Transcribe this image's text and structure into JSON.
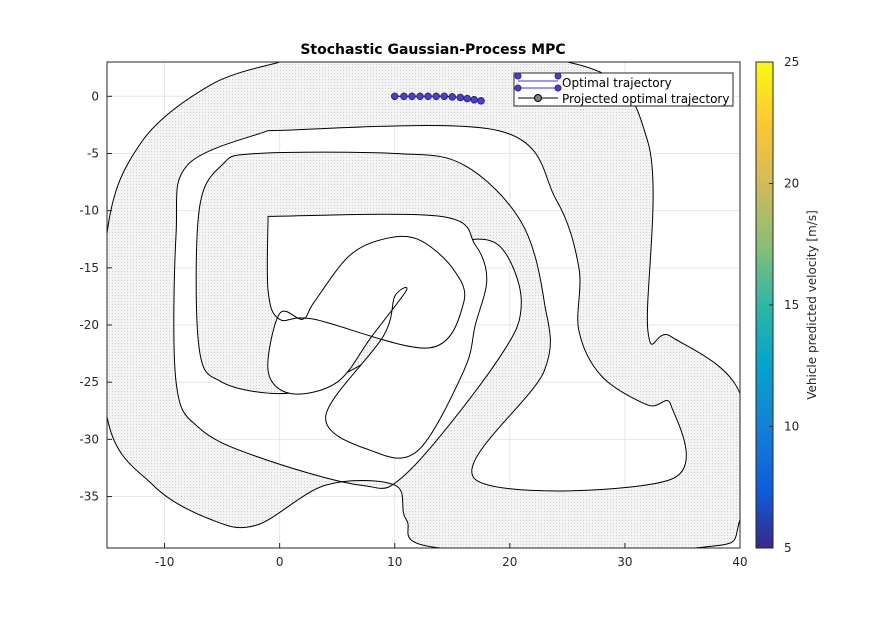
{
  "chart_data": {
    "type": "line",
    "title": "Stochastic Gaussian-Process MPC",
    "xlim": [
      -15,
      40
    ],
    "ylim": [
      -39.5,
      3
    ],
    "x_ticks": [
      -10,
      0,
      10,
      20,
      30,
      40
    ],
    "y_ticks": [
      0,
      -5,
      -10,
      -15,
      -20,
      -25,
      -30,
      -35
    ],
    "grid": true,
    "legend_placement": "top-right",
    "legend": [
      "Optimal trajectory",
      "Projected optimal trajectory"
    ],
    "colorbar": {
      "label": "Vehicle predicted velocity [m/s]",
      "range": [
        5,
        25
      ],
      "ticks": [
        5,
        10,
        15,
        20,
        25
      ],
      "colormap": "parula"
    },
    "track": {
      "outer_boundary": [
        [
          0,
          3
        ],
        [
          25,
          3
        ],
        [
          32,
          -4
        ],
        [
          32,
          -20.5
        ],
        [
          34,
          -21
        ],
        [
          40,
          -26
        ],
        [
          40,
          -37
        ],
        [
          36,
          -39.5
        ],
        [
          14,
          -39.5
        ],
        [
          11,
          -37
        ],
        [
          10,
          -34
        ],
        [
          4,
          -34
        ],
        [
          -2,
          -37.5
        ],
        [
          -6,
          -37
        ],
        [
          -11,
          -34
        ],
        [
          -15,
          -28
        ],
        [
          -15,
          -12
        ],
        [
          -12,
          -4
        ],
        [
          -6,
          1
        ],
        [
          0,
          3
        ]
      ],
      "outer_inner_edge": [
        [
          -1,
          -3
        ],
        [
          19,
          -3
        ],
        [
          24,
          -9
        ],
        [
          26,
          -15
        ],
        [
          26,
          -20.5
        ],
        [
          28,
          -24.5
        ],
        [
          32,
          -27
        ],
        [
          34,
          -27
        ],
        [
          34,
          -33.5
        ],
        [
          17,
          -33.5
        ],
        [
          23,
          -24
        ],
        [
          23,
          -18
        ],
        [
          21,
          -11
        ],
        [
          16,
          -6
        ],
        [
          10,
          -5
        ],
        [
          -2,
          -5
        ],
        [
          -5,
          -6
        ],
        [
          -7,
          -10
        ],
        [
          -7,
          -22
        ],
        [
          -5,
          -25
        ],
        [
          0,
          -26
        ],
        [
          4,
          -25
        ],
        [
          9,
          -22
        ],
        [
          13,
          -16
        ],
        [
          15,
          -13
        ],
        [
          19,
          -13
        ],
        [
          21,
          -18
        ],
        [
          19,
          -23
        ],
        [
          11,
          -33
        ],
        [
          7,
          -34
        ],
        [
          -2,
          -31.5
        ],
        [
          -7,
          -29
        ],
        [
          -9,
          -25
        ],
        [
          -9,
          -12
        ],
        [
          -8,
          -6
        ],
        [
          -1,
          -3
        ]
      ],
      "inner_island": [
        [
          -1,
          -10.5
        ],
        [
          14,
          -10.5
        ],
        [
          17,
          -13
        ],
        [
          18,
          -16
        ],
        [
          17,
          -20
        ],
        [
          16,
          -24
        ],
        [
          12,
          -31
        ],
        [
          8,
          -31
        ],
        [
          4,
          -28
        ],
        [
          9,
          -21
        ],
        [
          10,
          -17.5
        ],
        [
          11,
          -17
        ],
        [
          8,
          -21
        ],
        [
          5,
          -25
        ],
        [
          1,
          -26
        ],
        [
          -1,
          -24
        ],
        [
          0,
          -19
        ],
        [
          2,
          -19.5
        ],
        [
          3,
          -18
        ],
        [
          6,
          -14
        ],
        [
          9,
          -12.5
        ],
        [
          12,
          -12.5
        ],
        [
          15,
          -15
        ],
        [
          16,
          -18
        ],
        [
          13,
          -22
        ],
        [
          3,
          -19.5
        ],
        [
          0,
          -19.5
        ],
        [
          -1,
          -17
        ],
        [
          -1,
          -10.5
        ]
      ]
    },
    "series": [
      {
        "name": "Optimal trajectory",
        "x": [
          10.0,
          10.8,
          11.5,
          12.2,
          12.9,
          13.6,
          14.3,
          15.0,
          15.7,
          16.3,
          16.9,
          17.5
        ],
        "y": [
          0.0,
          0.0,
          0.0,
          0.0,
          0.0,
          0.0,
          0.0,
          -0.05,
          -0.1,
          -0.2,
          -0.3,
          -0.4
        ],
        "velocity": [
          7.5,
          7.5,
          7.5,
          7.4,
          7.4,
          7.3,
          7.3,
          7.2,
          7.2,
          7.1,
          7.1,
          7.0
        ]
      },
      {
        "name": "Projected optimal trajectory",
        "x": [
          10.0,
          10.8,
          11.5,
          12.2,
          12.9,
          13.6,
          14.3,
          15.0,
          15.7,
          16.3,
          16.9,
          17.5
        ],
        "y": [
          0.0,
          0.0,
          0.0,
          0.0,
          0.0,
          0.0,
          0.0,
          -0.05,
          -0.1,
          -0.2,
          -0.3,
          -0.4
        ]
      }
    ]
  },
  "colors": {
    "track_fill": "#f0f0f0",
    "track_edge": "#000000",
    "grid": "#e6e6e6",
    "marker_fill": "#4a3fcf",
    "marker_edge": "#2d2599",
    "projected": "#555555"
  }
}
